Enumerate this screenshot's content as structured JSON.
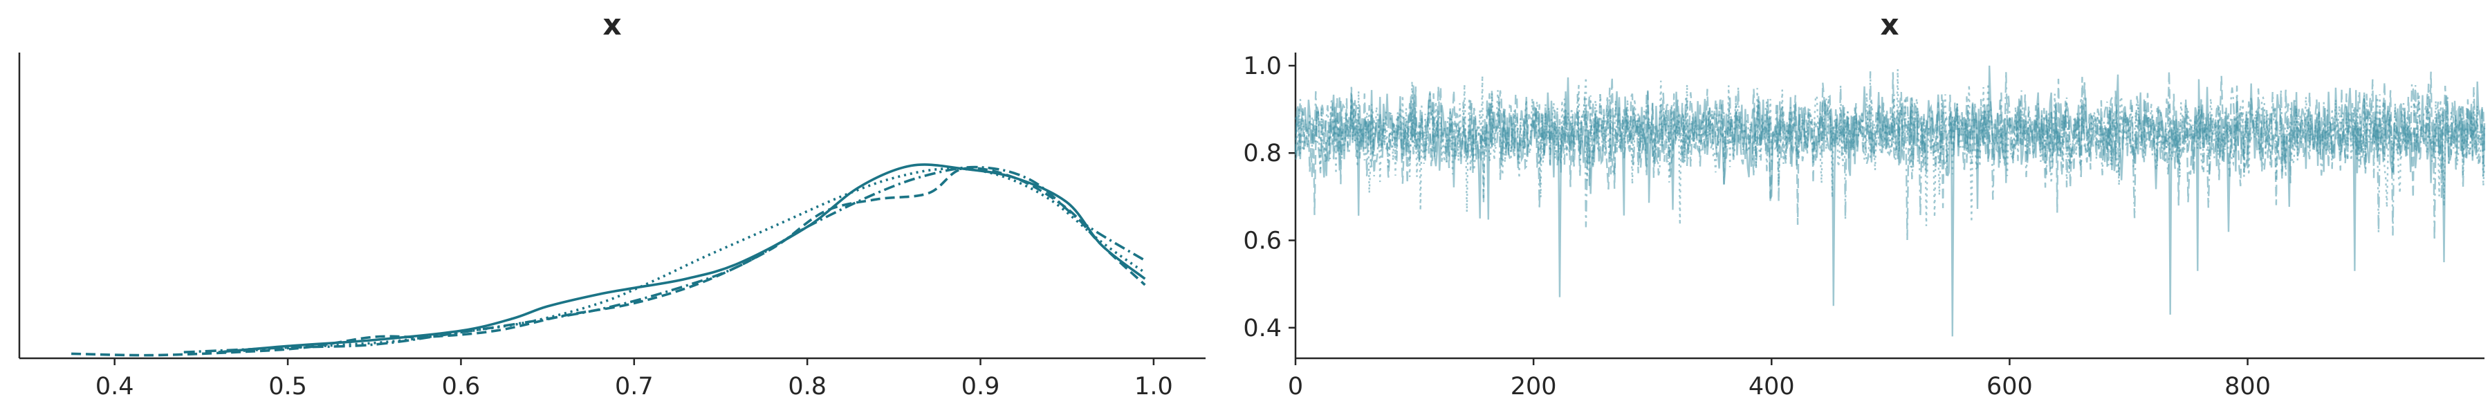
{
  "chart_data": [
    {
      "type": "line",
      "title": "x",
      "xlabel": "",
      "ylabel": "",
      "xlim": [
        0.345,
        1.03
      ],
      "ylim": [
        0,
        1.0
      ],
      "y_ticks_shown": false,
      "x_ticks": [
        0.4,
        0.5,
        0.6,
        0.7,
        0.8,
        0.9,
        1.0
      ],
      "x_tick_labels": [
        "0.4",
        "0.5",
        "0.6",
        "0.7",
        "0.8",
        "0.9",
        "1.0"
      ],
      "grid": false,
      "color": "#1b7486",
      "series": [
        {
          "line_style": "solid",
          "x": [
            0.46,
            0.5,
            0.55,
            0.6,
            0.63,
            0.65,
            0.68,
            0.7,
            0.73,
            0.76,
            0.8,
            0.83,
            0.86,
            0.89,
            0.92,
            0.95,
            0.97,
            0.995
          ],
          "y": [
            0.02,
            0.04,
            0.06,
            0.09,
            0.13,
            0.17,
            0.21,
            0.23,
            0.26,
            0.31,
            0.43,
            0.56,
            0.63,
            0.62,
            0.59,
            0.51,
            0.37,
            0.26
          ]
        },
        {
          "line_style": "dashed",
          "x": [
            0.375,
            0.42,
            0.47,
            0.51,
            0.55,
            0.58,
            0.62,
            0.66,
            0.7,
            0.74,
            0.78,
            0.81,
            0.84,
            0.87,
            0.89,
            0.92,
            0.95,
            0.97,
            0.995
          ],
          "y": [
            0.015,
            0.01,
            0.02,
            0.035,
            0.07,
            0.07,
            0.09,
            0.14,
            0.18,
            0.25,
            0.36,
            0.48,
            0.52,
            0.54,
            0.62,
            0.59,
            0.49,
            0.37,
            0.24
          ]
        },
        {
          "line_style": "dashdot",
          "x": [
            0.44,
            0.5,
            0.55,
            0.6,
            0.64,
            0.68,
            0.72,
            0.76,
            0.8,
            0.84,
            0.87,
            0.9,
            0.93,
            0.96,
            0.995
          ],
          "y": [
            0.02,
            0.035,
            0.045,
            0.085,
            0.12,
            0.16,
            0.22,
            0.3,
            0.43,
            0.54,
            0.6,
            0.625,
            0.58,
            0.44,
            0.32
          ]
        },
        {
          "line_style": "dotted",
          "x": [
            0.46,
            0.52,
            0.56,
            0.6,
            0.64,
            0.68,
            0.71,
            0.74,
            0.78,
            0.82,
            0.85,
            0.88,
            0.91,
            0.94,
            0.97,
            0.995
          ],
          "y": [
            0.02,
            0.04,
            0.055,
            0.085,
            0.12,
            0.18,
            0.25,
            0.33,
            0.43,
            0.53,
            0.59,
            0.62,
            0.6,
            0.52,
            0.38,
            0.28
          ]
        }
      ]
    },
    {
      "type": "line",
      "title": "x",
      "xlabel": "",
      "ylabel": "",
      "xlim": [
        0,
        999
      ],
      "ylim": [
        0.33,
        1.03
      ],
      "x_ticks": [
        0,
        200,
        400,
        600,
        800
      ],
      "x_tick_labels": [
        "0",
        "200",
        "400",
        "600",
        "800"
      ],
      "y_ticks": [
        0.4,
        0.6,
        0.8,
        1.0
      ],
      "y_tick_labels": [
        "0.4",
        "0.6",
        "0.8",
        "1.0"
      ],
      "grid": false,
      "color": "#3e8fa4",
      "n_draws": 1000,
      "series_line_styles": [
        "solid",
        "dashed",
        "dashdot",
        "dotted"
      ],
      "value_range": [
        0.38,
        1.0
      ],
      "typical_center": 0.85,
      "notable_minima": [
        {
          "x": 222,
          "y": 0.47
        },
        {
          "x": 452,
          "y": 0.45
        },
        {
          "x": 552,
          "y": 0.38
        },
        {
          "x": 735,
          "y": 0.43
        },
        {
          "x": 758,
          "y": 0.53
        },
        {
          "x": 890,
          "y": 0.53
        },
        {
          "x": 965,
          "y": 0.55
        }
      ]
    }
  ]
}
